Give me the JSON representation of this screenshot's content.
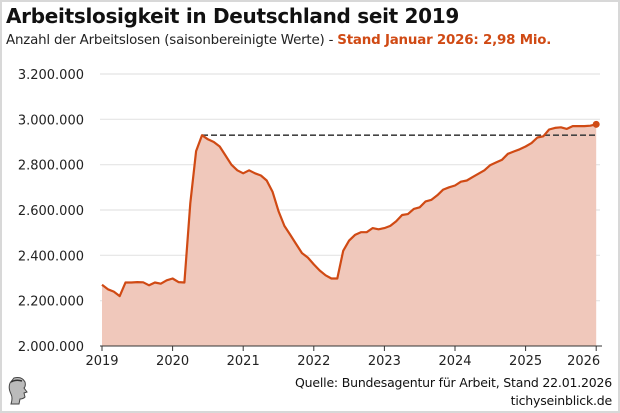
{
  "chart_data": {
    "type": "area",
    "title": "Arbeitslosigkeit in Deutschland seit 2019",
    "subtitle": "Anzahl der Arbeitslosen (saisonbereinigte Werte) - ",
    "subtitle_highlight": "Stand Januar 2026: 2,98 Mio.",
    "source": "Quelle: Bundesagentur für Arbeit, Stand 22.01.2026",
    "site": "tichyseinblick.de",
    "xlabel": "",
    "ylabel": "",
    "x_start": "2019-01",
    "x_end": "2026-01",
    "x_ticks": [
      "2019",
      "2020",
      "2021",
      "2022",
      "2023",
      "2024",
      "2025",
      "2026"
    ],
    "y_ticks": [
      "2.000.000",
      "2.200.000",
      "2.400.000",
      "2.600.000",
      "2.800.000",
      "3.000.000",
      "3.200.000"
    ],
    "ylim": [
      2000000,
      3200000
    ],
    "grid": true,
    "colors": {
      "line": "#d04a14",
      "fill": "#f0c8bb",
      "reference": "#444444",
      "highlight": "#d04a14"
    },
    "reference_line": {
      "value": 2930000,
      "from": "2020-06",
      "to": "2026-01",
      "style": "dashed"
    },
    "values": [
      2270000,
      2250000,
      2240000,
      2220000,
      2280000,
      2280000,
      2282000,
      2281000,
      2268000,
      2280000,
      2275000,
      2290000,
      2298000,
      2282000,
      2280000,
      2630000,
      2860000,
      2930000,
      2912000,
      2900000,
      2880000,
      2840000,
      2800000,
      2775000,
      2762000,
      2775000,
      2762000,
      2752000,
      2730000,
      2680000,
      2595000,
      2530000,
      2490000,
      2450000,
      2410000,
      2390000,
      2360000,
      2333000,
      2312000,
      2298000,
      2298000,
      2420000,
      2465000,
      2490000,
      2502000,
      2502000,
      2520000,
      2515000,
      2520000,
      2530000,
      2550000,
      2578000,
      2582000,
      2605000,
      2612000,
      2638000,
      2645000,
      2665000,
      2690000,
      2700000,
      2708000,
      2725000,
      2730000,
      2745000,
      2760000,
      2775000,
      2798000,
      2810000,
      2822000,
      2848000,
      2858000,
      2868000,
      2880000,
      2895000,
      2920000,
      2925000,
      2955000,
      2962000,
      2965000,
      2958000,
      2970000,
      2970000,
      2970000,
      2972000,
      2978000
    ]
  }
}
